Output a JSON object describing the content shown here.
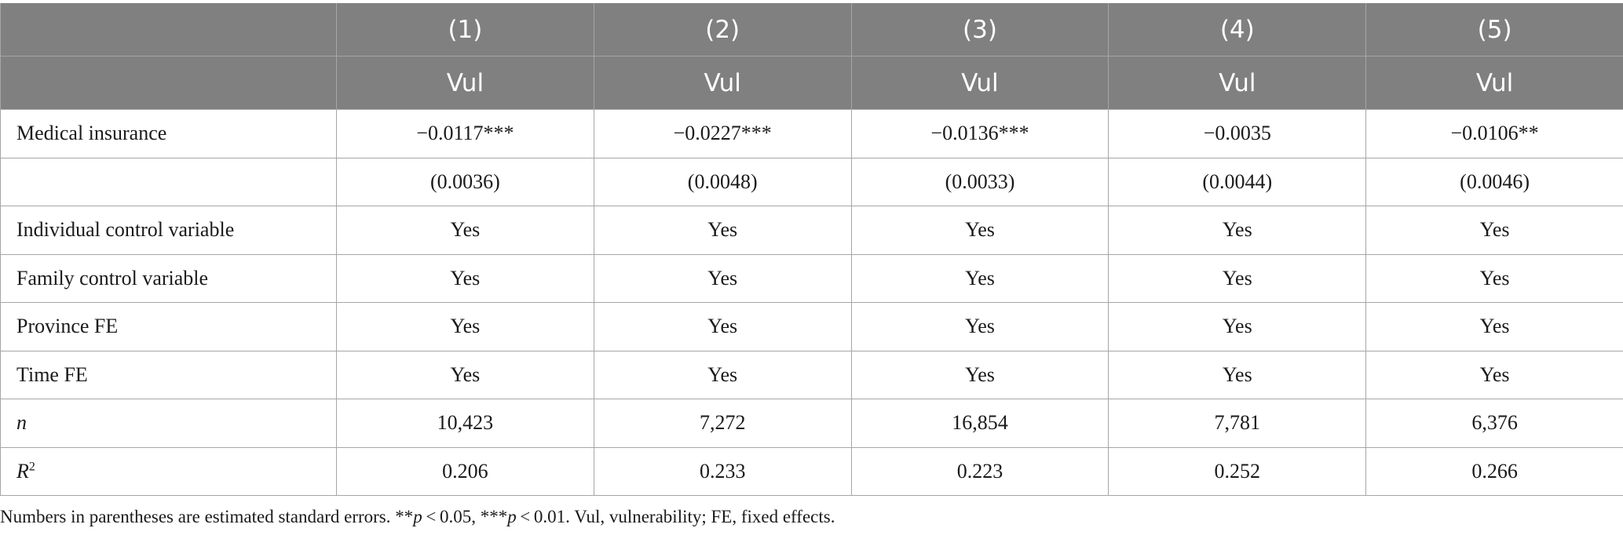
{
  "table": {
    "header_row1": [
      "",
      "(1)",
      "(2)",
      "(3)",
      "(4)",
      "(5)"
    ],
    "header_row2": [
      "",
      "Vul",
      "Vul",
      "Vul",
      "Vul",
      "Vul"
    ],
    "rows": [
      {
        "label": "Medical insurance",
        "values": [
          "−0.0117***",
          "−0.0227***",
          "−0.0136***",
          "−0.0035",
          "−0.0106**"
        ]
      },
      {
        "label": "",
        "values": [
          "(0.0036)",
          "(0.0048)",
          "(0.0033)",
          "(0.0044)",
          "(0.0046)"
        ]
      },
      {
        "label": "Individual control variable",
        "values": [
          "Yes",
          "Yes",
          "Yes",
          "Yes",
          "Yes"
        ]
      },
      {
        "label": "Family control variable",
        "values": [
          "Yes",
          "Yes",
          "Yes",
          "Yes",
          "Yes"
        ]
      },
      {
        "label": "Province FE",
        "values": [
          "Yes",
          "Yes",
          "Yes",
          "Yes",
          "Yes"
        ]
      },
      {
        "label": "Time FE",
        "values": [
          "Yes",
          "Yes",
          "Yes",
          "Yes",
          "Yes"
        ]
      },
      {
        "label": "n",
        "values": [
          "10,423",
          "7,272",
          "16,854",
          "7,781",
          "6,376"
        ]
      },
      {
        "label": "R",
        "label_sup": "2",
        "values": [
          "0.206",
          "0.233",
          "0.223",
          "0.252",
          "0.266"
        ]
      }
    ]
  },
  "note": {
    "part1": "Numbers in parentheses are estimated standard errors. **",
    "p1": "p",
    "part2": " < 0.05, ***",
    "p2": "p",
    "part3": " < 0.01. Vul, vulnerability; FE, fixed effects."
  }
}
